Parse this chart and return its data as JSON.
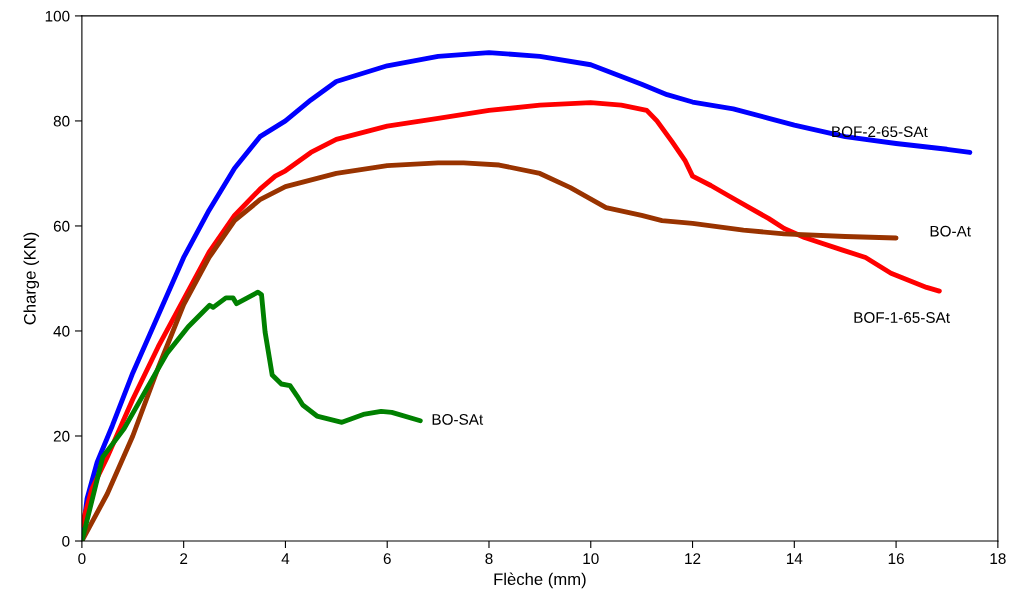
{
  "chart_data": {
    "type": "line",
    "xlabel": "Flèche (mm)",
    "ylabel": "Charge (KN)",
    "xlim": [
      0,
      18
    ],
    "xticks": [
      0,
      2,
      4,
      6,
      8,
      10,
      12,
      14,
      16,
      18
    ],
    "ylim": [
      0,
      100
    ],
    "yticks": [
      0,
      20,
      40,
      60,
      80,
      100
    ],
    "grid": false,
    "legend": false,
    "marker": "none",
    "line_style": "solid",
    "series": [
      {
        "name": "BOF-2-65-SAt",
        "color": "#0000ff",
        "x": [
          0,
          0.1,
          0.3,
          0.6,
          1,
          1.5,
          2,
          2.5,
          3,
          3.5,
          4,
          4.5,
          5,
          6,
          7,
          8,
          9,
          10,
          11,
          11.5,
          12,
          12.8,
          13.5,
          14,
          15,
          16,
          17,
          17.45
        ],
        "values": [
          0,
          8,
          15,
          22,
          32,
          43,
          54,
          63,
          71,
          77,
          80,
          84,
          87.5,
          90.5,
          92.3,
          93,
          92.3,
          90.7,
          87,
          85,
          83.6,
          82.3,
          80.5,
          79.2,
          77,
          75.7,
          74.6,
          74
        ]
      },
      {
        "name": "BOF-1-65-SAt",
        "color": "#ff0000",
        "x": [
          0,
          0.2,
          0.5,
          1,
          1.5,
          2,
          2.5,
          3,
          3.5,
          3.8,
          4,
          4.5,
          5,
          6,
          7,
          8,
          9,
          10,
          10.6,
          11.1,
          11.3,
          11.6,
          11.85,
          12,
          12.36,
          12.7,
          13.1,
          13.5,
          13.8,
          14.2,
          14.95,
          15.4,
          15.9,
          16.6,
          16.85
        ],
        "values": [
          3,
          10,
          16,
          27,
          37,
          46,
          55,
          62,
          67,
          69.5,
          70.5,
          74,
          76.5,
          79,
          80.5,
          82,
          83,
          83.5,
          83,
          82,
          80,
          76,
          72.5,
          69.5,
          67.7,
          65.8,
          63.6,
          61.4,
          59.5,
          57.8,
          55.4,
          54,
          51,
          48.3,
          47.6
        ]
      },
      {
        "name": "BO-At",
        "color": "#993300",
        "x": [
          0,
          0.5,
          1,
          1.5,
          2,
          2.5,
          3,
          3.5,
          4,
          5,
          6,
          7,
          7.5,
          8.2,
          9,
          9.6,
          10.3,
          11,
          11.4,
          12,
          13,
          13.8,
          15,
          16
        ],
        "values": [
          0,
          9,
          20,
          33,
          45,
          54,
          61,
          65,
          67.5,
          70,
          71.5,
          72,
          72,
          71.6,
          70,
          67.3,
          63.5,
          62,
          61,
          60.5,
          59.2,
          58.5,
          58,
          57.7
        ]
      },
      {
        "name": "BO-SAt",
        "color": "#008000",
        "x": [
          0,
          0.41,
          0.83,
          1.25,
          1.67,
          2.09,
          2.51,
          2.58,
          2.83,
          2.97,
          3.04,
          3.46,
          3.53,
          3.6,
          3.74,
          3.92,
          4.09,
          4.23,
          4.34,
          4.62,
          5.11,
          5.53,
          5.88,
          6.09,
          6.65
        ],
        "values": [
          0,
          16,
          21.4,
          28.6,
          35.7,
          40.8,
          44.9,
          44.5,
          46.3,
          46.3,
          45.2,
          47.4,
          46.9,
          39.8,
          31.6,
          29.9,
          29.6,
          27.6,
          25.9,
          23.8,
          22.6,
          24.1,
          24.7,
          24.5,
          22.9
        ]
      }
    ]
  }
}
